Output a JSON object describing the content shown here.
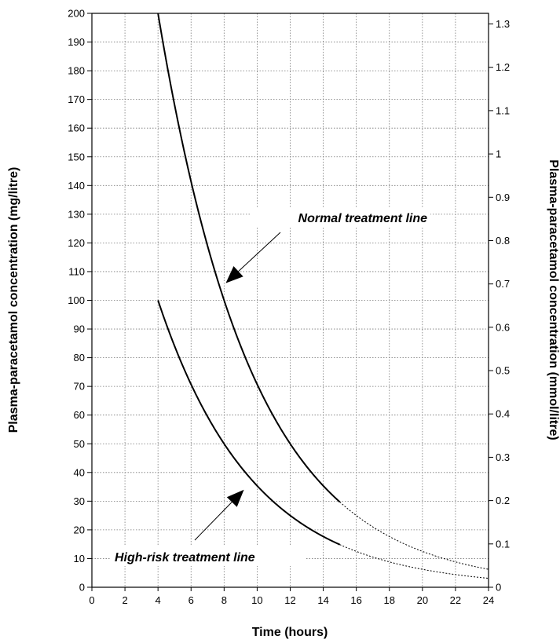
{
  "chart_data": {
    "type": "line",
    "xlabel": "Time (hours)",
    "ylabel": "Plasma-paracetamol concentration (mg/litre)",
    "y2label": "Plasma-paracetamol concentration (mmol/litre)",
    "xlim": [
      0,
      24
    ],
    "ylim": [
      0,
      200
    ],
    "y2lim": [
      0,
      1.3245
    ],
    "x_ticks": [
      "0",
      "2",
      "4",
      "6",
      "8",
      "10",
      "12",
      "14",
      "16",
      "18",
      "20",
      "22",
      "24"
    ],
    "y_ticks": [
      "0",
      "10",
      "20",
      "30",
      "40",
      "50",
      "60",
      "70",
      "80",
      "90",
      "100",
      "110",
      "120",
      "130",
      "140",
      "150",
      "160",
      "170",
      "180",
      "190",
      "200"
    ],
    "y2_ticks": [
      "0",
      "0.1",
      "0.2",
      "0.3",
      "0.4",
      "0.5",
      "0.6",
      "0.7",
      "0.8",
      "0.9",
      "1",
      "1.1",
      "1.2",
      "1.3"
    ],
    "grid": true,
    "series": [
      {
        "name": "Normal treatment line",
        "solid_x_range": [
          4,
          15
        ],
        "dotted_x_range": [
          15,
          24
        ],
        "x": [
          4,
          5,
          6,
          7,
          8,
          9,
          10,
          11,
          12,
          13,
          14,
          15,
          16,
          17,
          18,
          19,
          20,
          21,
          22,
          23,
          24
        ],
        "y": [
          200,
          168.2,
          141.4,
          118.9,
          100,
          84.1,
          70.7,
          59.5,
          50,
          42,
          35.4,
          29.7,
          25,
          21,
          17.7,
          14.9,
          12.5,
          10.5,
          8.8,
          7.4,
          6.25
        ]
      },
      {
        "name": "High-risk treatment line",
        "solid_x_range": [
          4,
          15
        ],
        "dotted_x_range": [
          15,
          24
        ],
        "x": [
          4,
          5,
          6,
          7,
          8,
          9,
          10,
          11,
          12,
          13,
          14,
          15,
          16,
          17,
          18,
          19,
          20,
          21,
          22,
          23,
          24
        ],
        "y": [
          100,
          84.1,
          70.7,
          59.5,
          50,
          42,
          35.4,
          29.7,
          25,
          21,
          17.7,
          14.9,
          12.5,
          10.5,
          8.8,
          7.4,
          6.25,
          5.3,
          4.4,
          3.7,
          3.1
        ]
      }
    ],
    "annotations": [
      {
        "text": "Normal treatment line",
        "arrow_to": [
          8.1,
          106
        ]
      },
      {
        "text": "High-risk treatment line",
        "arrow_to": [
          9.2,
          34
        ]
      }
    ]
  }
}
